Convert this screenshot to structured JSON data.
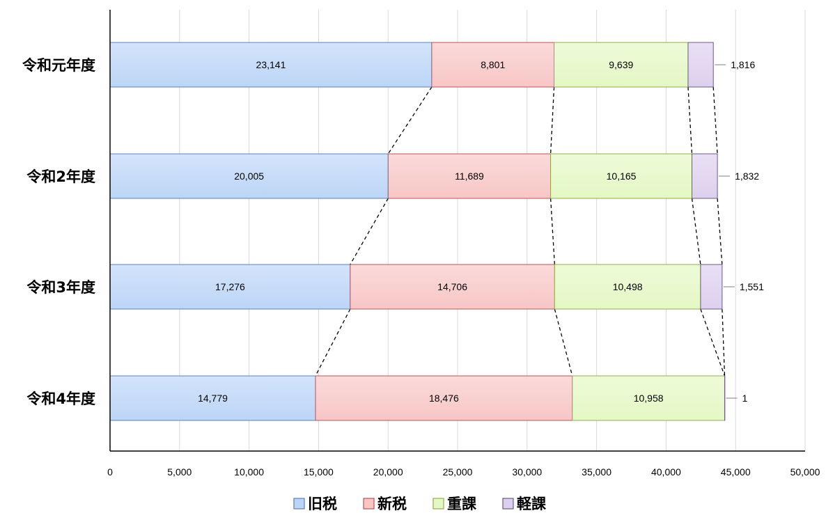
{
  "chart_data": {
    "type": "bar",
    "orientation": "horizontal",
    "stacked": true,
    "categories": [
      "令和元年度",
      "令和2年度",
      "令和3年度",
      "令和4年度"
    ],
    "series": [
      {
        "name": "旧税",
        "color": "#bcd5f7",
        "values": [
          23141,
          20005,
          17276,
          14779
        ],
        "value_labels": [
          "23,141",
          "20,005",
          "17,276",
          "14,779"
        ]
      },
      {
        "name": "新税",
        "color": "#f8c6c6",
        "values": [
          8801,
          11689,
          14706,
          18476
        ],
        "value_labels": [
          "8,801",
          "11,689",
          "14,706",
          "18,476"
        ]
      },
      {
        "name": "重課",
        "color": "#e4f8c4",
        "values": [
          9639,
          10165,
          10498,
          10958
        ],
        "value_labels": [
          "9,639",
          "10,165",
          "10,498",
          "10,958"
        ]
      },
      {
        "name": "軽課",
        "color": "#ddd0ee",
        "values": [
          1816,
          1832,
          1551,
          1
        ],
        "value_labels": [
          "1,816",
          "1,832",
          "1,551",
          "1"
        ]
      }
    ],
    "xlim": [
      0,
      50000
    ],
    "x_ticks": [
      0,
      5000,
      10000,
      15000,
      20000,
      25000,
      30000,
      35000,
      40000,
      45000,
      50000
    ],
    "x_tick_labels": [
      "0",
      "5,000",
      "10,000",
      "15,000",
      "20,000",
      "25,000",
      "30,000",
      "35,000",
      "40,000",
      "45,000",
      "50,000"
    ],
    "grid": true,
    "legend_position": "bottom",
    "connector_lines": "dashed"
  }
}
